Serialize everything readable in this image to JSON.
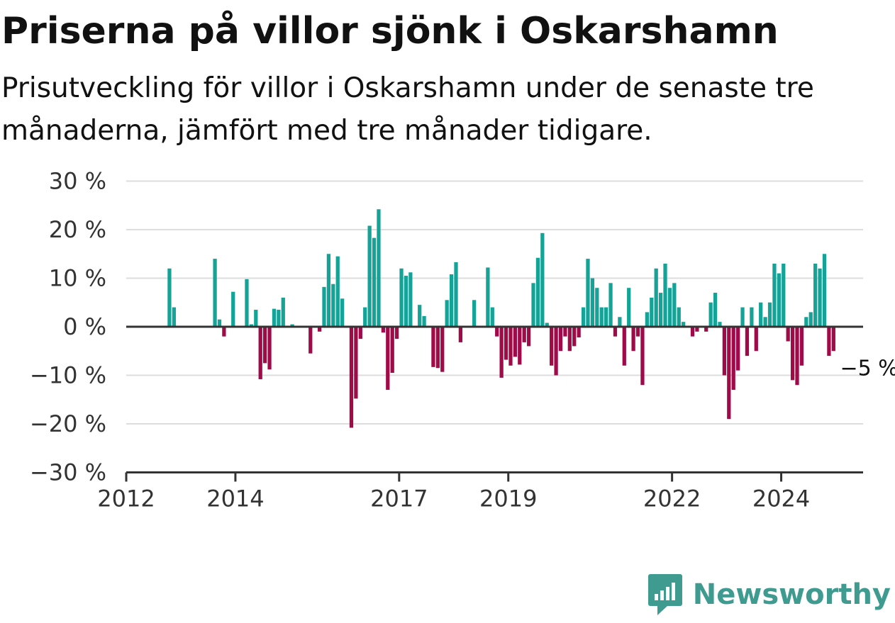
{
  "header": {
    "title": "Priserna på villor sjönk i Oskarshamn",
    "subtitle": "Prisutveckling för villor i Oskarshamn under de senaste tre månaderna, jämfört med tre månader tidigare."
  },
  "brand": {
    "name": "Newsworthy",
    "color": "#3f9a8f"
  },
  "colors": {
    "positive": "#14a396",
    "negative": "#a00a48",
    "axis": "#333333",
    "grid": "#dddddd"
  },
  "chart_data": {
    "type": "bar",
    "x_unit": "month",
    "start": "2012-01",
    "ylim": [
      -30,
      30
    ],
    "y_ticks": [
      30,
      20,
      10,
      0,
      -10,
      -20,
      -30
    ],
    "y_tick_labels": [
      "30 %",
      "20 %",
      "10 %",
      "0 %",
      "−10 %",
      "−20 %",
      "−30 %"
    ],
    "x_tick_labels": [
      "2012",
      "2014",
      "2017",
      "2019",
      "2022",
      "2024"
    ],
    "x_tick_months": [
      "2012-01",
      "2014-01",
      "2017-01",
      "2019-01",
      "2022-01",
      "2024-01"
    ],
    "grid": true,
    "annotation": {
      "text": "−5 %",
      "month": "2024-12",
      "value": -5
    },
    "values": [
      null,
      null,
      null,
      null,
      null,
      null,
      null,
      null,
      null,
      12,
      4,
      null,
      null,
      null,
      null,
      null,
      null,
      null,
      null,
      14,
      1.5,
      -2,
      null,
      7.2,
      null,
      null,
      9.8,
      0.5,
      3.5,
      -10.8,
      -7.5,
      -8.8,
      3.7,
      3.5,
      6,
      null,
      0.5,
      null,
      null,
      null,
      -5.5,
      null,
      -1,
      8.2,
      15,
      8.8,
      14.5,
      5.8,
      null,
      -20.8,
      -14.8,
      -2.5,
      4,
      20.8,
      18.3,
      24.2,
      -1.2,
      -13,
      -9.5,
      -2.5,
      12,
      10.5,
      11.2,
      null,
      4.5,
      2.2,
      null,
      -8.3,
      -8.5,
      -9.3,
      5.5,
      10.8,
      13.3,
      -3.2,
      null,
      null,
      5.5,
      null,
      null,
      12.2,
      4,
      -2,
      -10.5,
      -6.8,
      -8,
      -6.2,
      -7.8,
      -3.2,
      -4,
      9,
      14.2,
      19.3,
      0.8,
      -8,
      -10,
      -5,
      -2,
      -5,
      -4,
      -2.2,
      4,
      14,
      10,
      8,
      4,
      4,
      9,
      -2,
      2,
      -8,
      8,
      -5,
      -2,
      -12,
      3,
      6,
      12,
      7,
      13,
      8,
      9,
      4,
      1,
      null,
      -2,
      -1,
      null,
      -1,
      5,
      7,
      1,
      -10,
      -19,
      -13,
      -9,
      4,
      -6,
      4,
      -5,
      5,
      2,
      5,
      13,
      11,
      13,
      -3,
      -11,
      -12,
      -8,
      2,
      3,
      13,
      12,
      15,
      -6,
      -5
    ]
  }
}
